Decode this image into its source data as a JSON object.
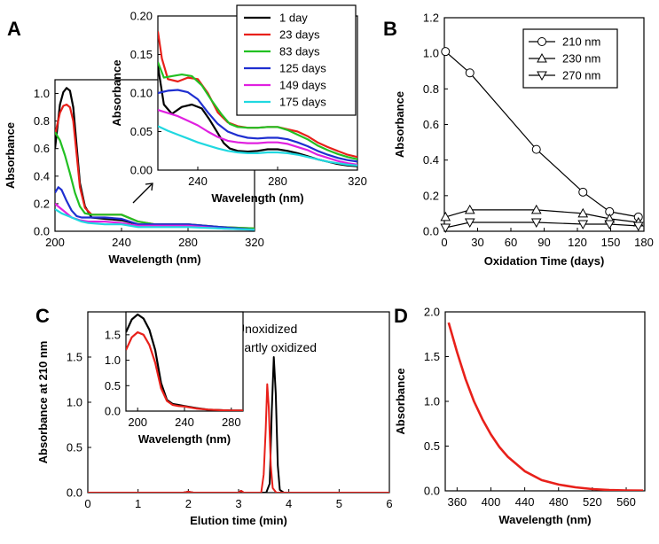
{
  "chart_data": [
    {
      "panel": "A",
      "type": "line",
      "xlabel": "Wavelength (nm)",
      "ylabel": "Absorbance",
      "xlim": [
        200,
        320
      ],
      "ylim": [
        0,
        1.1
      ],
      "xticks": [
        200,
        240,
        280,
        320
      ],
      "yticks": [
        0.0,
        0.2,
        0.4,
        0.6,
        0.8,
        1.0
      ],
      "series": [
        {
          "name": "1 day",
          "color": "#000000",
          "x": [
            200,
            203,
            205,
            207,
            209,
            211,
            213,
            215,
            218,
            222,
            230,
            240,
            250,
            260,
            270,
            280,
            300,
            320
          ],
          "y": [
            0.6,
            0.92,
            1.01,
            1.04,
            1.02,
            0.9,
            0.62,
            0.35,
            0.18,
            0.1,
            0.09,
            0.08,
            0.05,
            0.04,
            0.04,
            0.04,
            0.03,
            0.01
          ]
        },
        {
          "name": "23 days",
          "color": "#e8201a",
          "x": [
            200,
            203,
            205,
            207,
            209,
            211,
            213,
            215,
            218,
            222,
            230,
            240,
            250,
            260,
            270,
            280,
            300,
            320
          ],
          "y": [
            0.7,
            0.86,
            0.91,
            0.92,
            0.9,
            0.8,
            0.56,
            0.32,
            0.17,
            0.12,
            0.12,
            0.12,
            0.07,
            0.05,
            0.05,
            0.05,
            0.03,
            0.02
          ]
        },
        {
          "name": "83 days",
          "color": "#22c022",
          "x": [
            200,
            203,
            206,
            209,
            212,
            215,
            218,
            222,
            230,
            240,
            250,
            260,
            270,
            280,
            300,
            320
          ],
          "y": [
            0.72,
            0.66,
            0.55,
            0.42,
            0.28,
            0.18,
            0.13,
            0.12,
            0.12,
            0.12,
            0.07,
            0.05,
            0.05,
            0.05,
            0.03,
            0.02
          ]
        },
        {
          "name": "125 days",
          "color": "#1f2fd0",
          "x": [
            200,
            202,
            204,
            207,
            210,
            213,
            216,
            220,
            230,
            240,
            250,
            260,
            270,
            280,
            300,
            320
          ],
          "y": [
            0.28,
            0.32,
            0.3,
            0.22,
            0.15,
            0.11,
            0.1,
            0.1,
            0.1,
            0.09,
            0.05,
            0.05,
            0.05,
            0.05,
            0.03,
            0.01
          ]
        },
        {
          "name": "149 days",
          "color": "#e020e0",
          "x": [
            200,
            203,
            206,
            210,
            215,
            220,
            230,
            240,
            250,
            260,
            270,
            280,
            300,
            320
          ],
          "y": [
            0.2,
            0.17,
            0.14,
            0.1,
            0.08,
            0.07,
            0.07,
            0.06,
            0.04,
            0.04,
            0.04,
            0.04,
            0.02,
            0.01
          ]
        },
        {
          "name": "175 days",
          "color": "#20d8e0",
          "x": [
            200,
            204,
            208,
            212,
            216,
            220,
            230,
            240,
            250,
            260,
            270,
            280,
            300,
            320
          ],
          "y": [
            0.16,
            0.13,
            0.11,
            0.09,
            0.07,
            0.06,
            0.05,
            0.05,
            0.03,
            0.03,
            0.03,
            0.03,
            0.02,
            0.01
          ]
        }
      ],
      "inset": {
        "xlabel": "Wavelength (nm)",
        "ylabel": "Absorbance",
        "xlim": [
          220,
          320
        ],
        "ylim": [
          0,
          0.2
        ],
        "xticks": [
          240,
          280,
          320
        ],
        "yticks": [
          0.0,
          0.05,
          0.1,
          0.15,
          0.2
        ],
        "ytick_labels": [
          "0.00",
          "0.05",
          "0.10",
          "0.15",
          "0.20"
        ],
        "series": [
          {
            "name": "1 day",
            "color": "#000000",
            "x": [
              220,
              223,
              227,
              232,
              237,
              242,
              246,
              250,
              253,
              256,
              260,
              265,
              270,
              275,
              280,
              285,
              290,
              295,
              300,
              305,
              310,
              315,
              320
            ],
            "y": [
              0.135,
              0.085,
              0.073,
              0.082,
              0.085,
              0.08,
              0.065,
              0.048,
              0.035,
              0.028,
              0.025,
              0.024,
              0.025,
              0.027,
              0.027,
              0.025,
              0.022,
              0.018,
              0.014,
              0.011,
              0.008,
              0.006,
              0.005
            ]
          },
          {
            "name": "23 days",
            "color": "#e8201a",
            "x": [
              220,
              222,
              225,
              230,
              235,
              240,
              245,
              250,
              255,
              260,
              265,
              270,
              275,
              280,
              285,
              290,
              295,
              300,
              305,
              310,
              315,
              320
            ],
            "y": [
              0.18,
              0.145,
              0.118,
              0.115,
              0.12,
              0.118,
              0.1,
              0.075,
              0.062,
              0.057,
              0.055,
              0.055,
              0.056,
              0.056,
              0.053,
              0.05,
              0.044,
              0.036,
              0.03,
              0.025,
              0.02,
              0.017
            ]
          },
          {
            "name": "83 days",
            "color": "#22c022",
            "x": [
              220,
              223,
              227,
              232,
              237,
              242,
              247,
              252,
              256,
              260,
              265,
              270,
              275,
              280,
              285,
              290,
              295,
              300,
              305,
              310,
              315,
              320
            ],
            "y": [
              0.14,
              0.12,
              0.122,
              0.124,
              0.122,
              0.11,
              0.09,
              0.072,
              0.06,
              0.056,
              0.055,
              0.055,
              0.056,
              0.056,
              0.052,
              0.046,
              0.04,
              0.032,
              0.026,
              0.021,
              0.017,
              0.014
            ]
          },
          {
            "name": "125 days",
            "color": "#1f2fd0",
            "x": [
              220,
              225,
              230,
              235,
              240,
              245,
              250,
              255,
              260,
              265,
              270,
              275,
              280,
              285,
              290,
              295,
              300,
              305,
              310,
              315,
              320
            ],
            "y": [
              0.1,
              0.103,
              0.104,
              0.101,
              0.092,
              0.075,
              0.06,
              0.05,
              0.045,
              0.042,
              0.041,
              0.042,
              0.042,
              0.04,
              0.036,
              0.031,
              0.025,
              0.02,
              0.016,
              0.013,
              0.011
            ]
          },
          {
            "name": "149 days",
            "color": "#e020e0",
            "x": [
              220,
              225,
              230,
              235,
              240,
              245,
              250,
              255,
              260,
              265,
              270,
              275,
              280,
              285,
              290,
              295,
              300,
              305,
              310,
              315,
              320
            ],
            "y": [
              0.078,
              0.074,
              0.07,
              0.064,
              0.058,
              0.05,
              0.043,
              0.038,
              0.036,
              0.035,
              0.035,
              0.036,
              0.036,
              0.034,
              0.03,
              0.026,
              0.02,
              0.016,
              0.012,
              0.009,
              0.007
            ]
          },
          {
            "name": "175 days",
            "color": "#20d8e0",
            "x": [
              220,
              225,
              230,
              235,
              240,
              245,
              250,
              255,
              260,
              265,
              270,
              275,
              280,
              285,
              290,
              295,
              300,
              305,
              310,
              315,
              320
            ],
            "y": [
              0.057,
              0.051,
              0.046,
              0.041,
              0.036,
              0.032,
              0.028,
              0.025,
              0.023,
              0.022,
              0.022,
              0.023,
              0.023,
              0.022,
              0.02,
              0.017,
              0.014,
              0.011,
              0.009,
              0.007,
              0.006
            ]
          }
        ]
      },
      "legend": [
        "1 day",
        "23 days",
        "83 days",
        "125 days",
        "149 days",
        "175 days"
      ]
    },
    {
      "panel": "B",
      "type": "line",
      "xlabel": "Oxidation Time (days)",
      "ylabel": "Absorbance",
      "xlim": [
        0,
        180
      ],
      "ylim": [
        0,
        1.2
      ],
      "xticks": [
        0,
        30,
        60,
        90,
        120,
        150,
        180
      ],
      "yticks": [
        0.0,
        0.2,
        0.4,
        0.6,
        0.8,
        1.0,
        1.2
      ],
      "series": [
        {
          "name": "210 nm",
          "marker": "circle",
          "x": [
            1,
            23,
            83,
            125,
            149,
            175
          ],
          "y": [
            1.01,
            0.89,
            0.46,
            0.22,
            0.11,
            0.08
          ]
        },
        {
          "name": "230 nm",
          "marker": "triangle-up",
          "x": [
            1,
            23,
            83,
            125,
            149,
            175
          ],
          "y": [
            0.08,
            0.12,
            0.12,
            0.1,
            0.07,
            0.05
          ]
        },
        {
          "name": "270 nm",
          "marker": "triangle-down",
          "x": [
            1,
            23,
            83,
            125,
            149,
            175
          ],
          "y": [
            0.02,
            0.05,
            0.05,
            0.04,
            0.04,
            0.03
          ]
        }
      ],
      "legend": [
        "210 nm",
        "230 nm",
        "270 nm"
      ]
    },
    {
      "panel": "C",
      "type": "line",
      "xlabel": "Elution time (min)",
      "ylabel": "Absorbance at 210 nm",
      "xlim": [
        0,
        6
      ],
      "ylim": [
        0,
        2.0
      ],
      "xticks": [
        0,
        1,
        2,
        3,
        4,
        5,
        6
      ],
      "yticks": [
        0.0,
        0.5,
        1.0,
        1.5
      ],
      "series": [
        {
          "name": "Unoxidized",
          "color": "#000000",
          "x": [
            0,
            1,
            1.9,
            2.0,
            2.1,
            3.0,
            3.05,
            3.1,
            3.55,
            3.62,
            3.66,
            3.7,
            3.74,
            3.78,
            3.82,
            3.9,
            6
          ],
          "y": [
            0,
            0,
            0,
            0.01,
            0,
            0,
            0.02,
            0,
            0,
            0.1,
            0.9,
            1.5,
            1.1,
            0.3,
            0.03,
            0,
            0
          ]
        },
        {
          "name": "Partly oxidized",
          "color": "#e8201a",
          "x": [
            0,
            1,
            1.9,
            2.0,
            2.1,
            3.0,
            3.05,
            3.1,
            3.45,
            3.5,
            3.54,
            3.57,
            3.6,
            3.64,
            3.68,
            3.75,
            6
          ],
          "y": [
            0,
            0,
            0,
            0.01,
            0,
            0,
            0.02,
            0,
            0,
            0.2,
            0.7,
            1.2,
            0.95,
            0.3,
            0.05,
            0,
            0
          ]
        }
      ],
      "inset": {
        "xlabel": "Wavelength (nm)",
        "xlim": [
          190,
          290
        ],
        "ylim": [
          0,
          1.95
        ],
        "xticks": [
          200,
          240,
          280
        ],
        "yticks": [
          0.0,
          0.5,
          1.0,
          1.5
        ],
        "series": [
          {
            "name": "Unoxidized",
            "color": "#000000",
            "x": [
              190,
              195,
              200,
              205,
              210,
              215,
              220,
              225,
              230,
              235,
              240,
              250,
              260,
              270,
              280,
              290
            ],
            "y": [
              1.55,
              1.8,
              1.9,
              1.82,
              1.6,
              1.2,
              0.55,
              0.22,
              0.14,
              0.12,
              0.1,
              0.06,
              0.03,
              0.02,
              0.01,
              0.01
            ]
          },
          {
            "name": "Partly oxidized",
            "color": "#e8201a",
            "x": [
              190,
              195,
              200,
              205,
              210,
              215,
              220,
              225,
              230,
              235,
              240,
              250,
              260,
              270,
              280,
              290
            ],
            "y": [
              1.2,
              1.45,
              1.55,
              1.5,
              1.3,
              0.95,
              0.45,
              0.2,
              0.12,
              0.1,
              0.09,
              0.05,
              0.03,
              0.02,
              0.01,
              0.01
            ]
          }
        ]
      },
      "legend": [
        "Unoxidized",
        "Partly oxidized"
      ]
    },
    {
      "panel": "D",
      "type": "line",
      "xlabel": "Wavelength (nm)",
      "ylabel": "Absorbance",
      "xlim": [
        346,
        582
      ],
      "ylim": [
        0,
        2.0
      ],
      "xticks": [
        360,
        400,
        440,
        480,
        520,
        560
      ],
      "yticks": [
        0.0,
        0.5,
        1.0,
        1.5,
        2.0
      ],
      "series": [
        {
          "name": "absorbance",
          "color": "#e8201a",
          "x": [
            350,
            360,
            370,
            380,
            390,
            400,
            410,
            420,
            440,
            460,
            480,
            500,
            520,
            540,
            560,
            580
          ],
          "y": [
            1.88,
            1.55,
            1.25,
            1.0,
            0.8,
            0.63,
            0.49,
            0.38,
            0.22,
            0.12,
            0.07,
            0.04,
            0.02,
            0.01,
            0.005,
            0.003
          ]
        }
      ]
    }
  ],
  "panels": {
    "a": {
      "letter": "A"
    },
    "b": {
      "letter": "B"
    },
    "c": {
      "letter": "C"
    },
    "d": {
      "letter": "D"
    }
  }
}
